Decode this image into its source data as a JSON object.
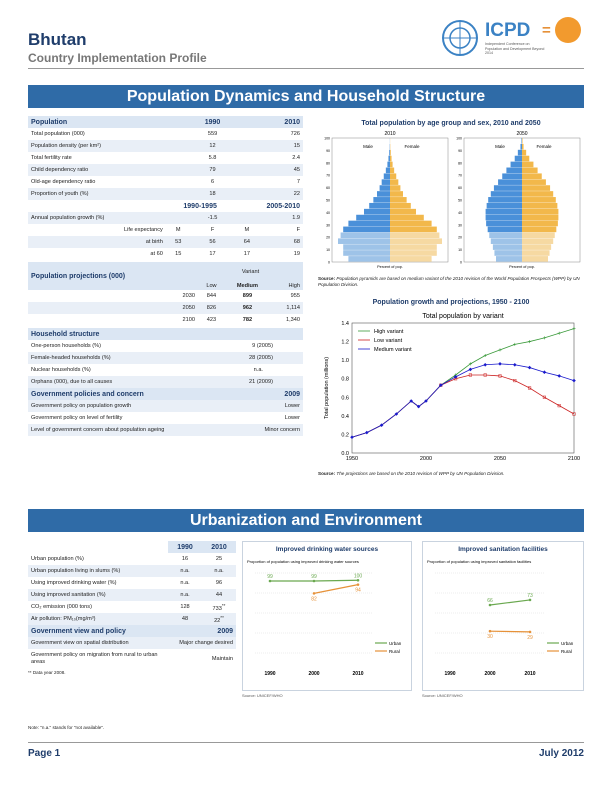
{
  "header": {
    "country": "Bhutan",
    "subtitle": "Country Implementation Profile",
    "logo_icpd": "ICPD",
    "logo_eq": "=",
    "logo_tag": "Independent Conference on Population and Development Beyond 2014"
  },
  "section1": {
    "title": "Population Dynamics and Household Structure"
  },
  "population": {
    "head": "Population",
    "y1": "1990",
    "y2": "2010",
    "rows": [
      {
        "label": "Total population (000)",
        "v1": "559",
        "v2": "726"
      },
      {
        "label": "Population density (per km²)",
        "v1": "12",
        "v2": "15"
      },
      {
        "label": "Total fertility rate",
        "v1": "5.8",
        "v2": "2.4"
      },
      {
        "label": "Child dependency ratio",
        "v1": "79",
        "v2": "45"
      },
      {
        "label": "Old-age dependency ratio",
        "v1": "6",
        "v2": "7"
      },
      {
        "label": "Proportion of youth (%)",
        "v1": "18",
        "v2": "22"
      }
    ],
    "p1": "1990-1995",
    "p2": "2005-2010",
    "growth": {
      "label": "Annual population growth (%)",
      "v1": "-1.5",
      "v2": "1.9"
    },
    "le": {
      "label": "Life expectancy",
      "m1": "M",
      "f1": "F",
      "m2": "M",
      "f2": "F"
    },
    "birth": {
      "label": "at birth",
      "a": "53",
      "b": "56",
      "c": "64",
      "d": "68"
    },
    "sixty": {
      "label": "at 60",
      "a": "15",
      "b": "17",
      "c": "17",
      "d": "19"
    }
  },
  "projections": {
    "head": "Population projections (000)",
    "variant": "Variant",
    "low": "Low",
    "medium": "Medium",
    "high": "High",
    "rows": [
      {
        "y": "2030",
        "l": "844",
        "m": "899",
        "h": "955"
      },
      {
        "y": "2050",
        "l": "826",
        "m": "962",
        "h": "1,114"
      },
      {
        "y": "2100",
        "l": "423",
        "m": "782",
        "h": "1,340"
      }
    ]
  },
  "household": {
    "head": "Household structure",
    "rows": [
      {
        "label": "One-person households (%)",
        "v": "9 (2005)"
      },
      {
        "label": "Female-headed households (%)",
        "v": "28 (2005)"
      },
      {
        "label": "Nuclear households (%)",
        "v": "n.a."
      },
      {
        "label": "Orphans (000), due to all causes",
        "v": "21 (2009)"
      }
    ]
  },
  "policy1": {
    "head": "Government policies and concern",
    "year": "2009",
    "rows": [
      {
        "label": "Government policy on population growth",
        "v": "Lower"
      },
      {
        "label": "Government policy on level of fertility",
        "v": "Lower"
      },
      {
        "label": "Level of government concern about population ageing",
        "v": "Minor concern"
      }
    ]
  },
  "pyramid": {
    "title": "Total population by age group and sex, 2010 and 2050",
    "y1": "2010",
    "y2": "2050",
    "male": "Male",
    "female": "Female",
    "xlabel": "Percent of pop.",
    "source_label": "Source:",
    "source": "Population pyramids are based on medium variant of the 2010 revision of the World Population Prospects (WPP) by UN Population Division.",
    "ages": [
      "0",
      "10",
      "20",
      "30",
      "40",
      "50",
      "60",
      "70",
      "80",
      "90",
      "100"
    ]
  },
  "growthchart": {
    "title": "Population growth and projections, 1950 - 2100",
    "inner_title": "Total population by variant",
    "ylabel": "Total population (millions)",
    "source_label": "Source:",
    "source": "The projections are based on the 2010 revision of WPP by UN Population Division."
  },
  "chart_data": {
    "type": "line",
    "title": "Total population by variant",
    "ylabel": "Total population (millions)",
    "ylim": [
      0,
      1.4
    ],
    "xlim": [
      1950,
      2100
    ],
    "yticks": [
      "0.0",
      "0.2",
      "0.4",
      "0.6",
      "0.8",
      "1.0",
      "1.2",
      "1.4"
    ],
    "xticks": [
      "1950",
      "2000",
      "2050",
      "2100"
    ],
    "x": [
      1950,
      1960,
      1970,
      1980,
      1990,
      1995,
      2000,
      2010,
      2020,
      2030,
      2040,
      2050,
      2060,
      2070,
      2080,
      2090,
      2100
    ],
    "series": [
      {
        "name": "High variant",
        "color": "#3a9a3a",
        "values": [
          0.17,
          0.22,
          0.3,
          0.42,
          0.56,
          0.5,
          0.56,
          0.73,
          0.84,
          0.96,
          1.05,
          1.11,
          1.17,
          1.2,
          1.24,
          1.29,
          1.34
        ]
      },
      {
        "name": "Low variant",
        "color": "#cc2222",
        "values": [
          0.17,
          0.22,
          0.3,
          0.42,
          0.56,
          0.5,
          0.56,
          0.73,
          0.8,
          0.84,
          0.84,
          0.83,
          0.78,
          0.7,
          0.6,
          0.51,
          0.42
        ]
      },
      {
        "name": "Medium variant",
        "color": "#1a1acc",
        "values": [
          0.17,
          0.22,
          0.3,
          0.42,
          0.56,
          0.5,
          0.56,
          0.73,
          0.82,
          0.9,
          0.95,
          0.96,
          0.95,
          0.92,
          0.87,
          0.83,
          0.78
        ]
      }
    ]
  },
  "section2": {
    "title": "Urbanization and Environment"
  },
  "urban": {
    "y1": "1990",
    "y2": "2010",
    "rows": [
      {
        "label": "Urban population (%)",
        "v1": "16",
        "v2": "25"
      },
      {
        "label": "Urban population living in slums (%)",
        "v1": "n.a.",
        "v2": "n.a."
      },
      {
        "label": "Using improved drinking water (%)",
        "v1": "n.a.",
        "v2": "96"
      },
      {
        "label": "Using improved sanitation (%)",
        "v1": "n.a.",
        "v2": "44"
      },
      {
        "label": "CO₂ emission (000 tons)",
        "v1": "128",
        "v2": "733",
        "note": "**"
      },
      {
        "label": "Air pollution: PM₁₀(mg/m³)",
        "v1": "48",
        "v2": "22",
        "note": "**"
      }
    ]
  },
  "policy2": {
    "head": "Government view and policy",
    "year": "2009",
    "rows": [
      {
        "label": "Government view on spatial distribution",
        "v": "Major change desired"
      },
      {
        "label": "Government policy on migration from rural to urban areas",
        "v": "Maintain"
      }
    ]
  },
  "footnote": "** Data year 2008.",
  "water": {
    "title": "Improved drinking water sources",
    "sub": "Proportion of population using improved drinking water sources",
    "source": "Source: UNICEF/WHO",
    "x": [
      "1990",
      "2000",
      "2010"
    ],
    "urban_label": "Urban",
    "rural_label": "Rural",
    "urban": [
      99,
      99,
      100
    ],
    "rural": [
      null,
      82,
      94
    ],
    "urban_labels": [
      "99",
      "99",
      "100"
    ],
    "rural_labels": [
      "82",
      "94"
    ],
    "urban_color": "#6aa84f",
    "rural_color": "#e69138"
  },
  "sanit": {
    "title": "Improved sanitation facilities",
    "sub": "Proportion of population using improved sanitation facilities",
    "source": "Source: UNICEF/WHO",
    "x": [
      "1990",
      "2000",
      "2010"
    ],
    "urban_label": "Urban",
    "rural_label": "Rural",
    "urban": [
      null,
      66,
      73
    ],
    "rural": [
      null,
      30,
      29
    ],
    "urban_labels": [
      "66",
      "73"
    ],
    "rural_labels": [
      "30",
      "29"
    ],
    "urban_color": "#6aa84f",
    "rural_color": "#e69138"
  },
  "note": "Note: \"n.a.\" stands for \"not available\".",
  "footer": {
    "page": "Page 1",
    "date": "July 2012"
  }
}
